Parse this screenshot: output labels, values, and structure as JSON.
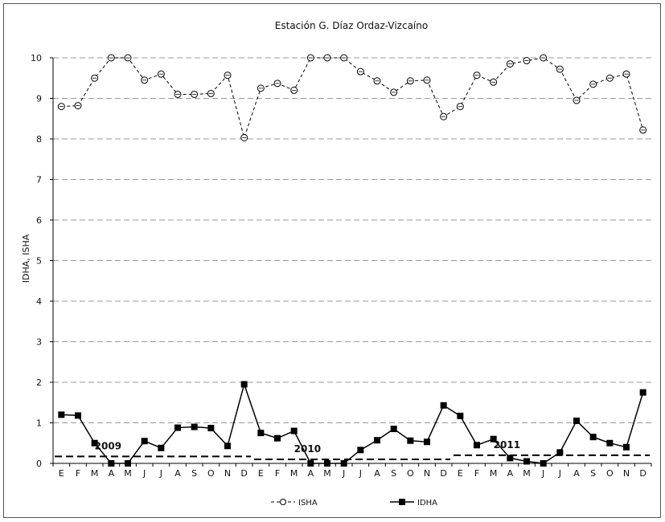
{
  "chart_data": {
    "type": "line",
    "title": "Estación G. Díaz Ordaz-Vizcaíno",
    "xlabel": "",
    "ylabel": "IDHA, ISHA",
    "ylim": [
      0,
      10
    ],
    "y_ticks": [
      0,
      1,
      2,
      3,
      4,
      5,
      6,
      7,
      8,
      9,
      10
    ],
    "grid": "horizontal dashed",
    "legend_position": "bottom-center",
    "categories": [
      "E",
      "F",
      "M",
      "A",
      "M",
      "J",
      "J",
      "A",
      "S",
      "O",
      "N",
      "D",
      "E",
      "F",
      "M",
      "A",
      "M",
      "J",
      "J",
      "A",
      "S",
      "O",
      "N",
      "D",
      "E",
      "F",
      "M",
      "A",
      "M",
      "J",
      "J",
      "A",
      "S",
      "O",
      "N",
      "D"
    ],
    "series": [
      {
        "name": "ISHA",
        "style": "dashed line, open circle markers",
        "color": "#000000",
        "values": [
          8.8,
          8.82,
          9.5,
          10.0,
          10.0,
          9.45,
          9.6,
          9.1,
          9.1,
          9.12,
          9.57,
          8.03,
          9.25,
          9.37,
          9.2,
          10.0,
          10.0,
          10.0,
          9.66,
          9.43,
          9.15,
          9.43,
          9.45,
          8.55,
          8.8,
          9.57,
          9.4,
          9.85,
          9.93,
          10.0,
          9.72,
          8.95,
          9.35,
          9.5,
          9.6,
          8.22
        ]
      },
      {
        "name": "IDHA",
        "style": "solid line, filled square markers",
        "color": "#000000",
        "values": [
          1.2,
          1.18,
          0.5,
          0.0,
          0.0,
          0.55,
          0.38,
          0.88,
          0.9,
          0.87,
          0.43,
          1.95,
          0.75,
          0.62,
          0.8,
          0.0,
          0.0,
          0.0,
          0.33,
          0.57,
          0.85,
          0.56,
          0.53,
          1.43,
          1.17,
          0.45,
          0.6,
          0.13,
          0.05,
          0.0,
          0.27,
          1.05,
          0.65,
          0.5,
          0.4,
          1.75
        ]
      }
    ],
    "reference_lines": [
      {
        "label": "2009",
        "value": 0.17,
        "from_index": 0,
        "to_index": 11
      },
      {
        "label": "2010",
        "value": 0.1,
        "from_index": 12,
        "to_index": 23
      },
      {
        "label": "2011",
        "value": 0.2,
        "from_index": 24,
        "to_index": 35
      }
    ]
  }
}
